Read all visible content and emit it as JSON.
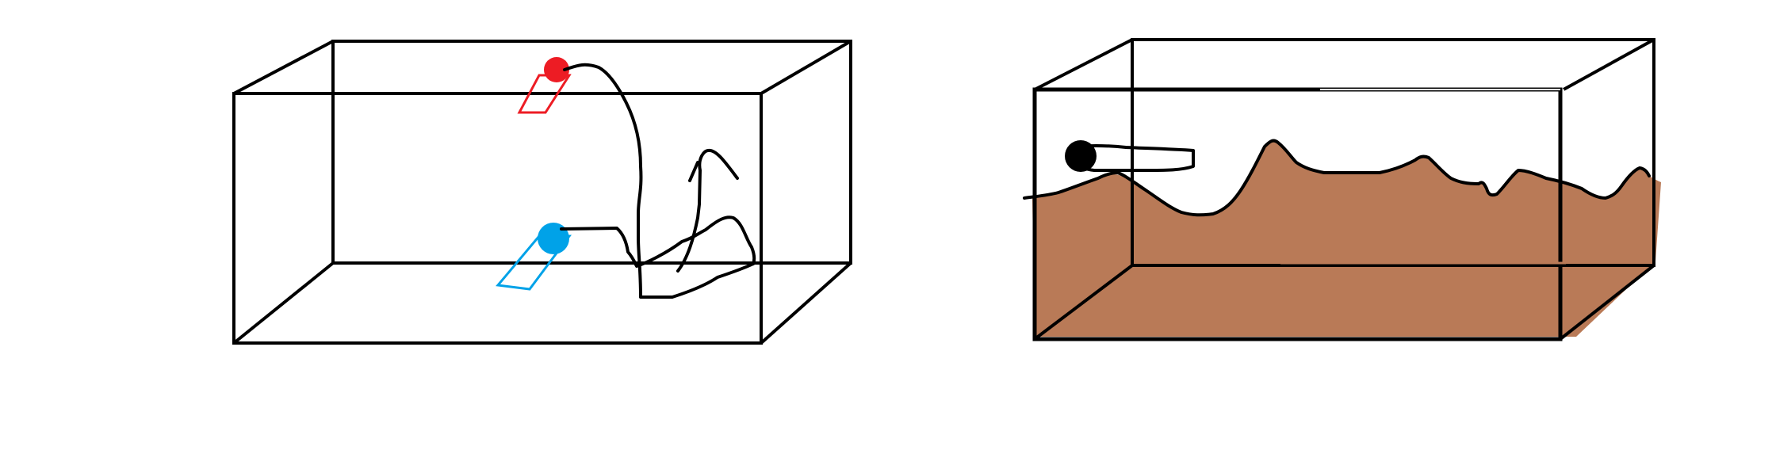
{
  "colors": {
    "background": "#ffffff",
    "outline": "#000000",
    "red_marker": "#ed1c24",
    "blue_marker": "#00a2e8",
    "soil_fill": "#b97a57",
    "black_marker": "#000000"
  },
  "panels": [
    {
      "name": "left-diagram",
      "contents": [
        "box-wireframe",
        "red-sphere",
        "red-parallelogram",
        "blue-sphere",
        "blue-parallelogram",
        "wire-path"
      ]
    },
    {
      "name": "right-diagram",
      "contents": [
        "box-wireframe",
        "soil-fill",
        "black-sphere",
        "wire-path"
      ]
    }
  ]
}
